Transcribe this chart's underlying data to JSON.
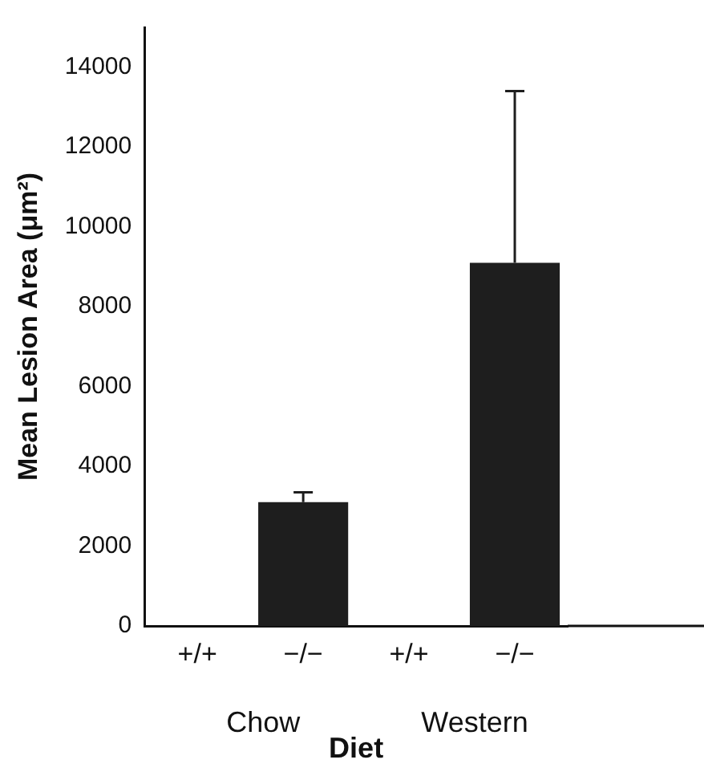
{
  "chart_data": {
    "type": "bar",
    "xlabel": "Diet",
    "ylabel": "Mean Lesion Area (μm²)",
    "categories": [
      "+/+",
      "−/−",
      "+/+",
      "−/−"
    ],
    "values": [
      0,
      3100,
      0,
      9100
    ],
    "color": "#1e1e1e",
    "errors": [
      null,
      [
        3100,
        3350
      ],
      null,
      [
        9100,
        13400
      ]
    ],
    "annotations": [
      "Chow",
      "Western"
    ],
    "ylim": [
      0,
      15000
    ],
    "yticks": [
      0,
      2000,
      4000,
      6000,
      8000,
      10000,
      12000,
      14000
    ],
    "grid": false,
    "legend": false
  }
}
